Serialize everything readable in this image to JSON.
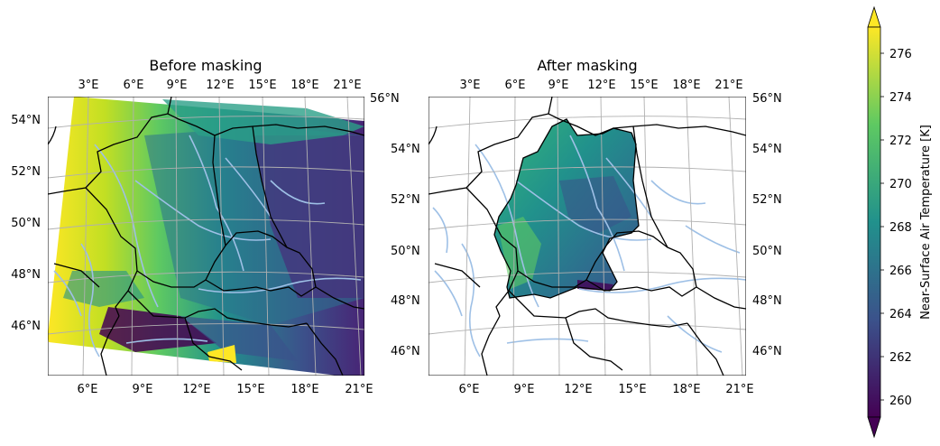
{
  "panels": [
    {
      "title": "Before masking",
      "top_lon_labels": [
        "3°E",
        "6°E",
        "9°E",
        "12°E",
        "15°E",
        "18°E",
        "21°E"
      ],
      "bottom_lon_labels": [
        "6°E",
        "9°E",
        "12°E",
        "15°E",
        "18°E",
        "21°E"
      ],
      "left_lat_labels": [
        "54°N",
        "52°N",
        "50°N",
        "48°N",
        "46°N"
      ],
      "right_lat_labels": [
        "56°N",
        "54°N",
        "52°N",
        "50°N",
        "48°N",
        "46°N"
      ]
    },
    {
      "title": "After masking",
      "top_lon_labels": [
        "3°E",
        "6°E",
        "9°E",
        "12°E",
        "15°E",
        "18°E",
        "21°E"
      ],
      "bottom_lon_labels": [
        "6°E",
        "9°E",
        "12°E",
        "15°E",
        "18°E",
        "21°E"
      ],
      "left_lat_labels": [],
      "right_lat_labels": [
        "56°N",
        "54°N",
        "52°N",
        "50°N",
        "48°N",
        "46°N"
      ]
    }
  ],
  "colorbar": {
    "label": "Near-Surface Air Temperature [K]",
    "ticks": [
      "276",
      "274",
      "272",
      "270",
      "268",
      "266",
      "264",
      "262",
      "260"
    ],
    "colormap": "viridis",
    "extend": "both",
    "colors": [
      "#440154",
      "#3b528b",
      "#21918c",
      "#5ec962",
      "#fde725"
    ]
  }
}
